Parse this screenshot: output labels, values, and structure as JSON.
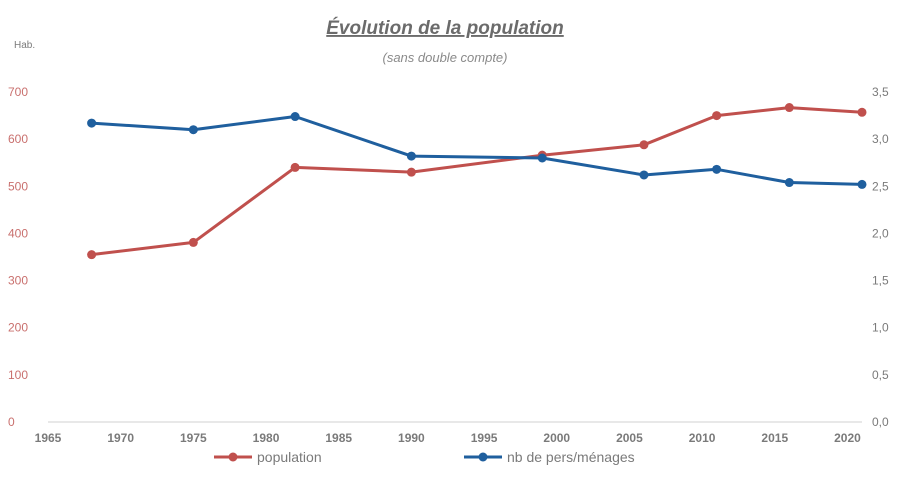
{
  "chart_data": {
    "type": "line",
    "title": "Évolution de la population",
    "subtitle": "(sans double compte)",
    "y_left_unit": "Hab.",
    "x_ticks": [
      1965,
      1970,
      1975,
      1980,
      1985,
      1990,
      1995,
      2000,
      2005,
      2010,
      2015,
      2020
    ],
    "xlim": [
      1965,
      2021
    ],
    "y_left_ticks": [
      "0",
      "100",
      "200",
      "300",
      "400",
      "500",
      "600",
      "700"
    ],
    "y_left_lim": [
      0,
      700
    ],
    "y_right_ticks": [
      "0,0",
      "0,5",
      "1,0",
      "1,5",
      "2,0",
      "2,5",
      "3,0",
      "3,5"
    ],
    "y_right_lim": [
      0,
      3.5
    ],
    "grid": false,
    "legend_position": "bottom",
    "series": [
      {
        "name": "population",
        "axis": "left",
        "color": "#c0504d",
        "x": [
          1968,
          1975,
          1982,
          1990,
          1999,
          2006,
          2011,
          2016,
          2021
        ],
        "values": [
          355,
          381,
          540,
          530,
          566,
          588,
          650,
          667,
          657
        ]
      },
      {
        "name": "nb de pers/ménages",
        "axis": "right",
        "color": "#1f5f9e",
        "x": [
          1968,
          1975,
          1982,
          1990,
          1999,
          2006,
          2011,
          2016,
          2021
        ],
        "values": [
          3.17,
          3.1,
          3.24,
          2.82,
          2.8,
          2.62,
          2.68,
          2.54,
          2.52
        ]
      }
    ]
  }
}
